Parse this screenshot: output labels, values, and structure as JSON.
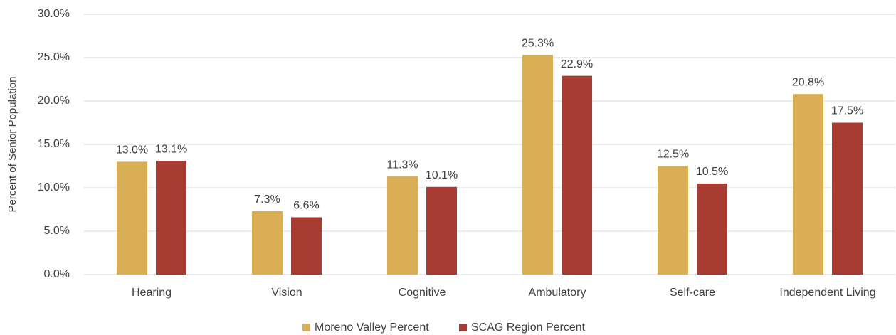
{
  "chart_data": {
    "type": "bar",
    "y_label": "Percent of Senior Population",
    "categories": [
      "Hearing",
      "Vision",
      "Cognitive",
      "Ambulatory",
      "Self-care",
      "Independent Living"
    ],
    "series": [
      {
        "name": "Moreno Valley Percent",
        "color": "#d9ae55",
        "values": [
          13.0,
          7.3,
          11.3,
          25.3,
          12.5,
          20.8
        ],
        "value_labels": [
          "13.0%",
          "7.3%",
          "11.3%",
          "25.3%",
          "12.5%",
          "20.8%"
        ]
      },
      {
        "name": "SCAG Region Percent",
        "color": "#a93c32",
        "values": [
          13.1,
          6.6,
          10.1,
          22.9,
          10.5,
          17.5
        ],
        "value_labels": [
          "13.1%",
          "6.6%",
          "10.1%",
          "22.9%",
          "10.5%",
          "17.5%"
        ]
      }
    ],
    "ylim": [
      0,
      30
    ],
    "yticks": [
      {
        "value": 0,
        "label": "0.0%"
      },
      {
        "value": 5,
        "label": "5.0%"
      },
      {
        "value": 10,
        "label": "10.0%"
      },
      {
        "value": 15,
        "label": "15.0%"
      },
      {
        "value": 20,
        "label": "20.0%"
      },
      {
        "value": 25,
        "label": "25.0%"
      },
      {
        "value": 30,
        "label": "30.0%"
      }
    ],
    "grid": true,
    "legend": "bottom"
  }
}
